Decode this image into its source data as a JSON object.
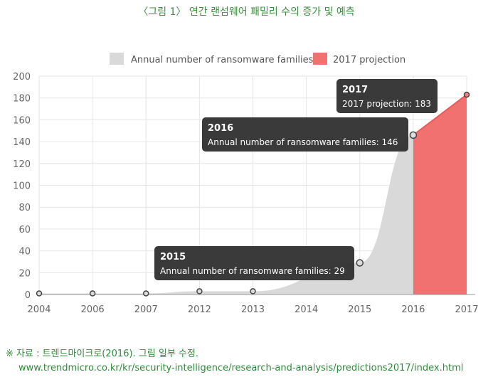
{
  "figure_title": "〈그림 1〉 연간 랜섬웨어 패밀리 수의 증가 및 예측",
  "source": {
    "line1": "※ 자료 : 트렌드마이크로(2016). 그림 일부 수정.",
    "line2": "www.trendmicro.co.kr/kr/security-intelligence/research-and-analysis/predictions2017/index.html"
  },
  "colors": {
    "title": "#3a8f3a",
    "annual_fill": "#d9d9d9",
    "projection_fill": "#f17171",
    "projection_line": "#e85a5a",
    "tooltip_bg": "#2b2b2b",
    "grid": "#e6e6e6"
  },
  "chart_data": {
    "type": "area",
    "categories": [
      "2004",
      "2006",
      "2007",
      "2012",
      "2013",
      "2014",
      "2015",
      "2016",
      "2017"
    ],
    "series": [
      {
        "name": "Annual number of ransomware families",
        "values": [
          1,
          1,
          1,
          3,
          3,
          null,
          29,
          146,
          null
        ]
      },
      {
        "name": "2017 projection",
        "values": [
          null,
          null,
          null,
          null,
          null,
          null,
          null,
          146,
          183
        ]
      }
    ],
    "yticks": [
      "0",
      "20",
      "40",
      "60",
      "80",
      "100",
      "120",
      "140",
      "160",
      "180",
      "200"
    ],
    "ylim": [
      0,
      200
    ],
    "legend_position": "top",
    "grid": true,
    "tooltips": [
      {
        "title": "2015",
        "body": "Annual number of ransomware families: 29"
      },
      {
        "title": "2016",
        "body": "Annual number of ransomware families: 146"
      },
      {
        "title": "2017",
        "body": "2017 projection: 183"
      }
    ]
  }
}
